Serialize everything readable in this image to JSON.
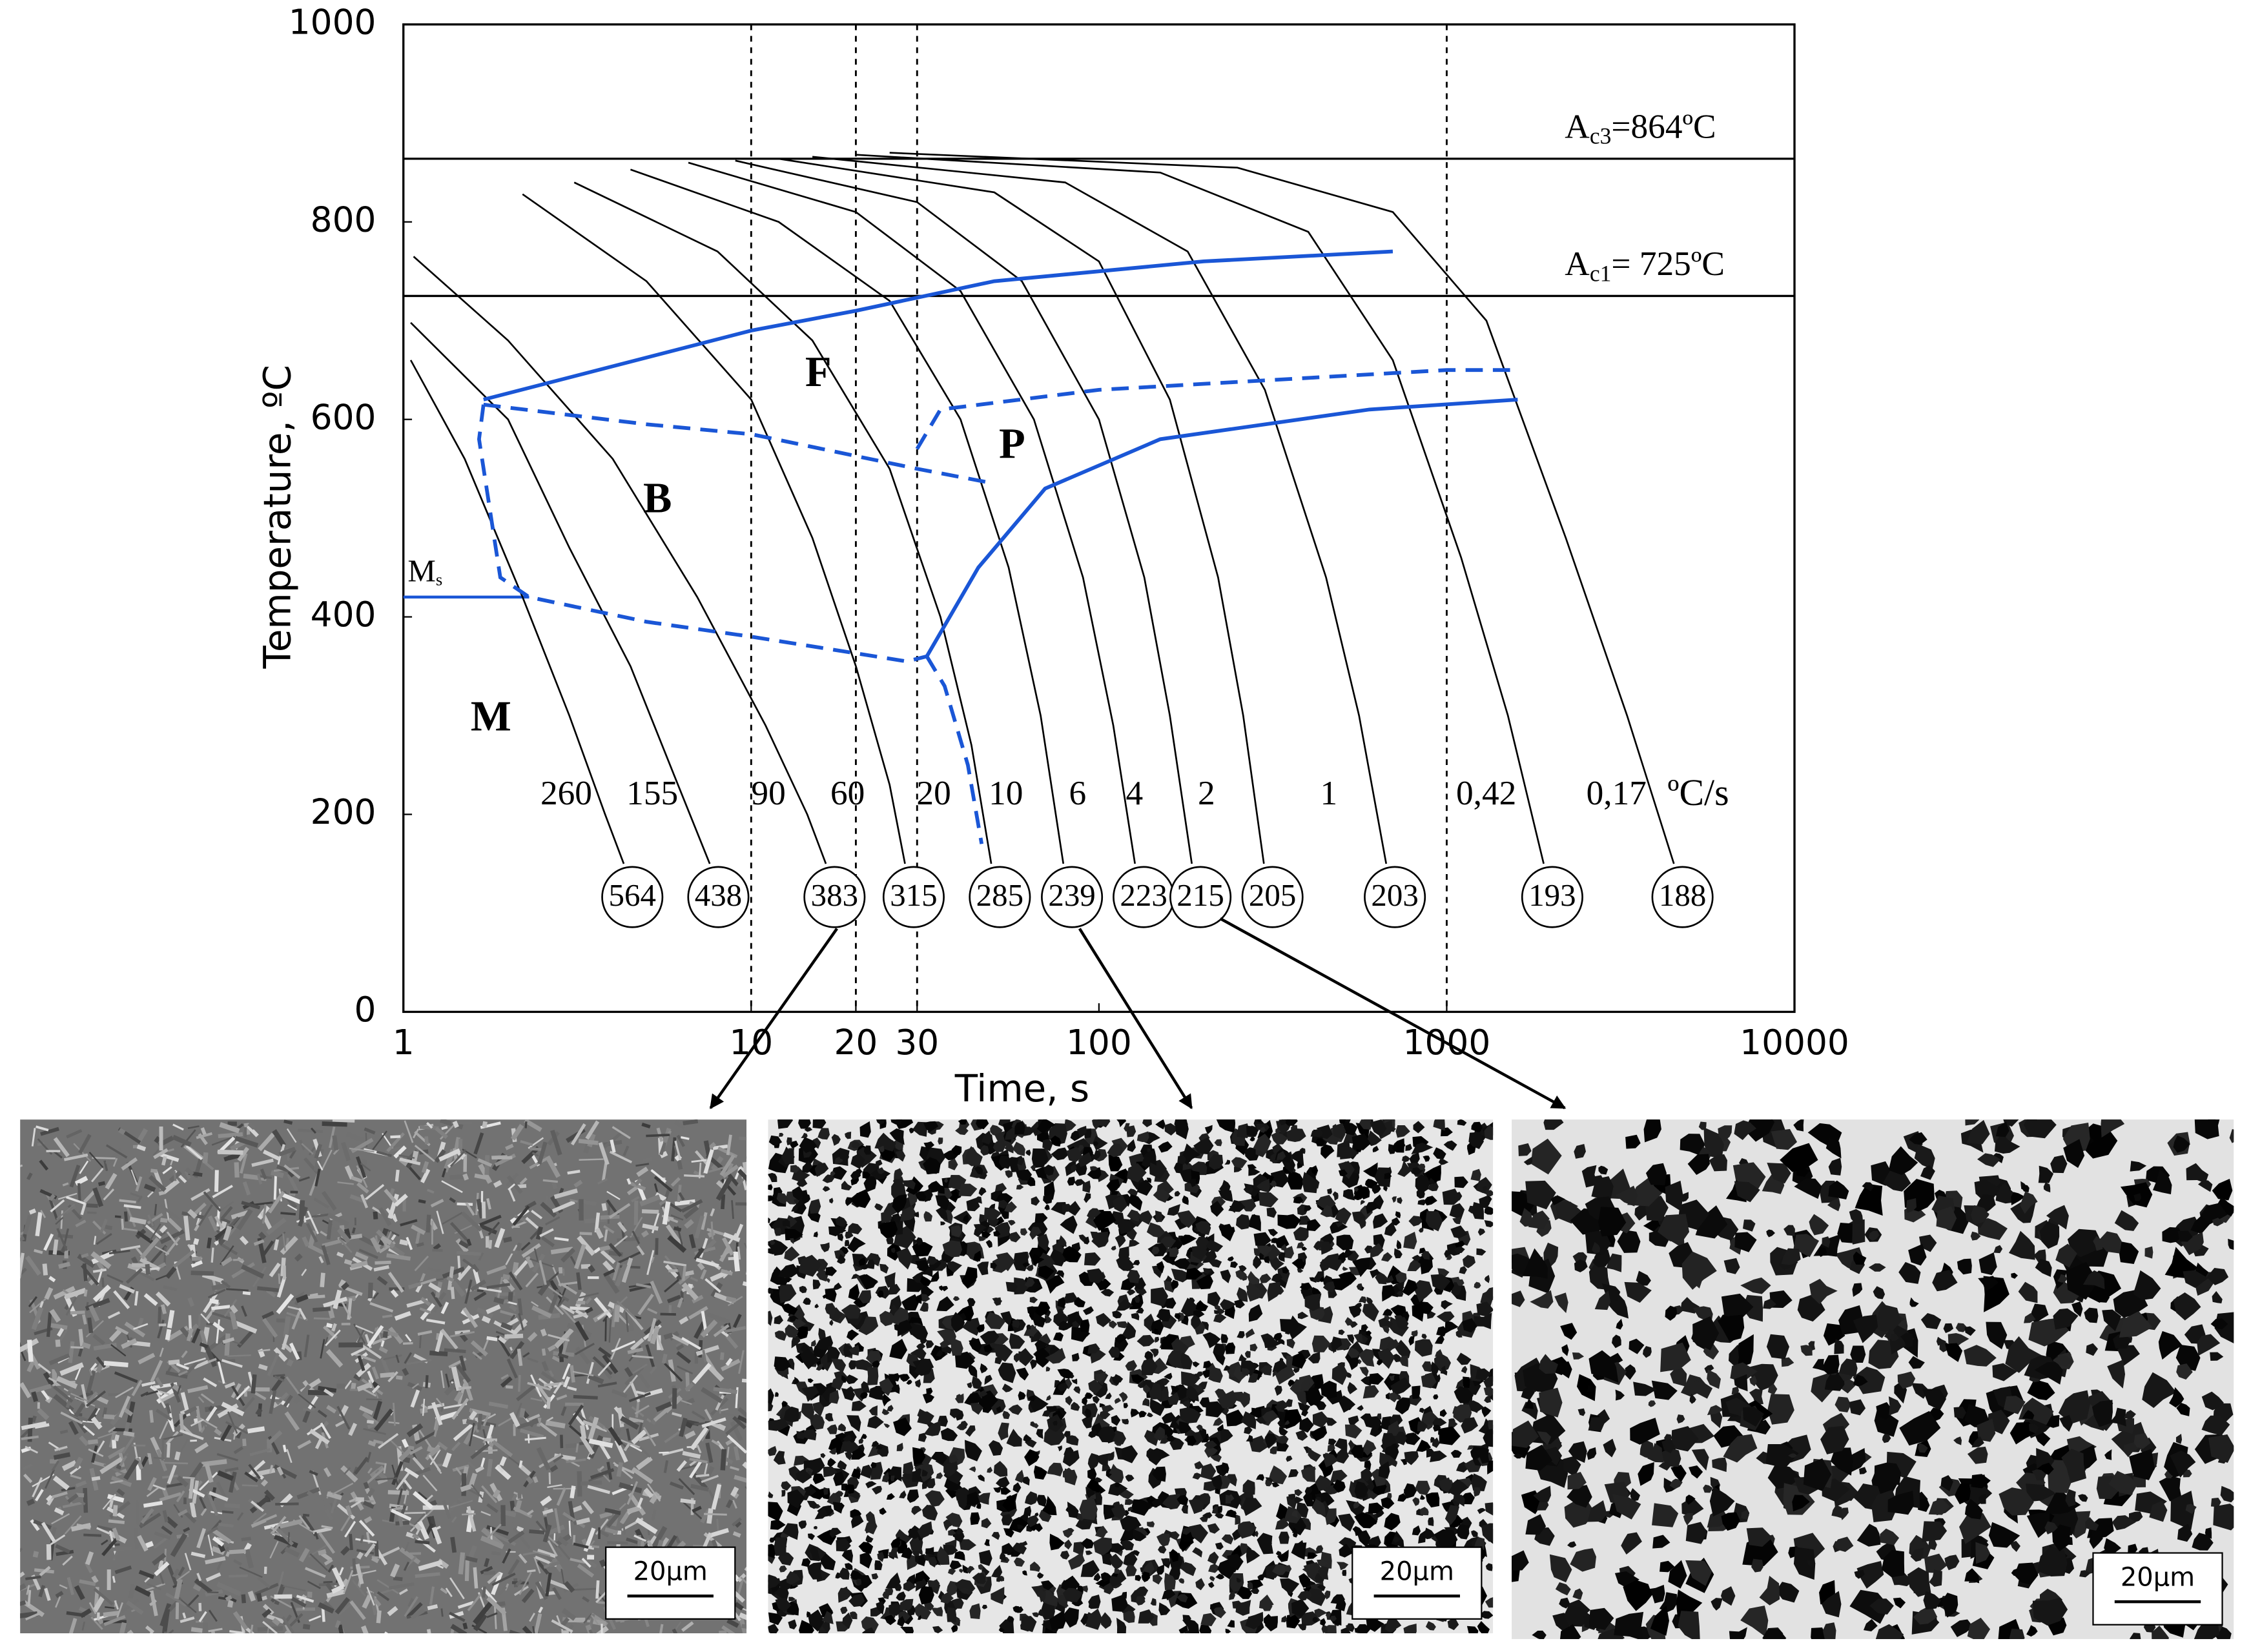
{
  "chart_data": {
    "type": "cct",
    "x_label": "Time, s",
    "y_label": "Temperature, ºC",
    "xscale": "log",
    "xlim": [
      1,
      10000
    ],
    "ylim": [
      0,
      1000
    ],
    "xticks": [
      1,
      10,
      20,
      30,
      100,
      1000,
      10000
    ],
    "yticks": [
      0,
      200,
      400,
      600,
      800,
      1000
    ],
    "vlines": [
      10,
      20,
      30,
      1000
    ],
    "curve_color": "#000000",
    "boundary_color": "#1a56d6",
    "rate_unit": "ºC/s",
    "ac3": {
      "value": 864,
      "label": [
        "A",
        "c3",
        "=864ºC"
      ]
    },
    "ac1": {
      "value": 725,
      "label": [
        "A",
        "c1",
        "= 725ºC"
      ]
    },
    "ms": {
      "label": [
        "M",
        "s"
      ],
      "x": [
        1,
        2.3
      ],
      "values": [
        420,
        420
      ]
    },
    "regions": [
      "F",
      "P",
      "B",
      "M"
    ],
    "curves": [
      {
        "rate": "260",
        "hardness": 564,
        "x": [
          1.05,
          1.5,
          2.2,
          3.0,
          3.8,
          4.3
        ],
        "values": [
          660,
          560,
          420,
          300,
          200,
          150
        ]
      },
      {
        "rate": "155",
        "hardness": 438,
        "x": [
          1.05,
          2,
          3,
          4.5,
          6,
          7.6
        ],
        "values": [
          698,
          600,
          470,
          350,
          240,
          150
        ]
      },
      {
        "rate": "90",
        "hardness": 383,
        "x": [
          1.07,
          2,
          4,
          7,
          11,
          14.5,
          16.4
        ],
        "values": [
          765,
          680,
          560,
          420,
          290,
          200,
          150
        ]
      },
      {
        "rate": "60",
        "hardness": 315,
        "x": [
          2.2,
          5,
          10,
          15,
          20,
          25,
          27.7
        ],
        "values": [
          828,
          740,
          620,
          480,
          350,
          230,
          150
        ]
      },
      {
        "rate": "20",
        "hardness": 285,
        "x": [
          3.1,
          8,
          15,
          25,
          35,
          43,
          49
        ],
        "values": [
          840,
          770,
          680,
          550,
          400,
          270,
          150
        ]
      },
      {
        "rate": "10",
        "hardness": 239,
        "x": [
          4.5,
          12,
          25,
          40,
          55,
          68,
          79
        ],
        "values": [
          853,
          800,
          720,
          600,
          450,
          300,
          150
        ]
      },
      {
        "rate": "6",
        "hardness": 223,
        "x": [
          6.6,
          20,
          40,
          65,
          90,
          110,
          127
        ],
        "values": [
          860,
          810,
          730,
          600,
          440,
          290,
          150
        ]
      },
      {
        "rate": "4",
        "hardness": 215,
        "x": [
          9,
          30,
          60,
          100,
          135,
          160,
          185
        ],
        "values": [
          862,
          820,
          740,
          600,
          440,
          300,
          150
        ]
      },
      {
        "rate": "2",
        "hardness": 205,
        "x": [
          12,
          50,
          100,
          160,
          220,
          260,
          298
        ],
        "values": [
          864,
          830,
          760,
          620,
          440,
          300,
          150
        ]
      },
      {
        "rate": "1",
        "hardness": 203,
        "x": [
          15,
          80,
          180,
          300,
          450,
          560,
          670
        ],
        "values": [
          866,
          840,
          770,
          630,
          440,
          300,
          150
        ]
      },
      {
        "rate": "0,42",
        "hardness": 193,
        "x": [
          20,
          150,
          400,
          700,
          1100,
          1500,
          1900
        ],
        "values": [
          868,
          850,
          790,
          660,
          460,
          300,
          150
        ]
      },
      {
        "rate": "0,17",
        "hardness": 188,
        "x": [
          25,
          250,
          700,
          1300,
          2200,
          3300,
          4500
        ],
        "values": [
          870,
          855,
          810,
          700,
          480,
          300,
          150
        ]
      }
    ],
    "boundaries": [
      {
        "style": "solid",
        "x": [
          1.7,
          10,
          20,
          50,
          200,
          700
        ],
        "values": [
          620,
          690,
          710,
          740,
          760,
          770
        ]
      },
      {
        "style": "dashed",
        "x": [
          30,
          35,
          100,
          1000,
          1600
        ],
        "values": [
          570,
          610,
          630,
          650,
          650
        ]
      },
      {
        "style": "solid",
        "x": [
          32,
          45,
          70,
          150,
          600,
          1600
        ],
        "values": [
          360,
          450,
          530,
          580,
          610,
          620
        ]
      },
      {
        "style": "dashed",
        "x": [
          1.7,
          5,
          10,
          30,
          50
        ],
        "values": [
          615,
          595,
          585,
          550,
          535
        ]
      },
      {
        "style": "dashed",
        "x": [
          1.7,
          1.65,
          1.9,
          2.3,
          5,
          10,
          28,
          32
        ],
        "values": [
          615,
          580,
          440,
          420,
          395,
          380,
          355,
          360
        ]
      },
      {
        "style": "dashed",
        "x": [
          32,
          36,
          42,
          46
        ],
        "values": [
          360,
          330,
          250,
          170
        ]
      }
    ]
  },
  "micrographs": {
    "scale_bars": [
      "20µm",
      "20µm",
      "20µm"
    ]
  }
}
